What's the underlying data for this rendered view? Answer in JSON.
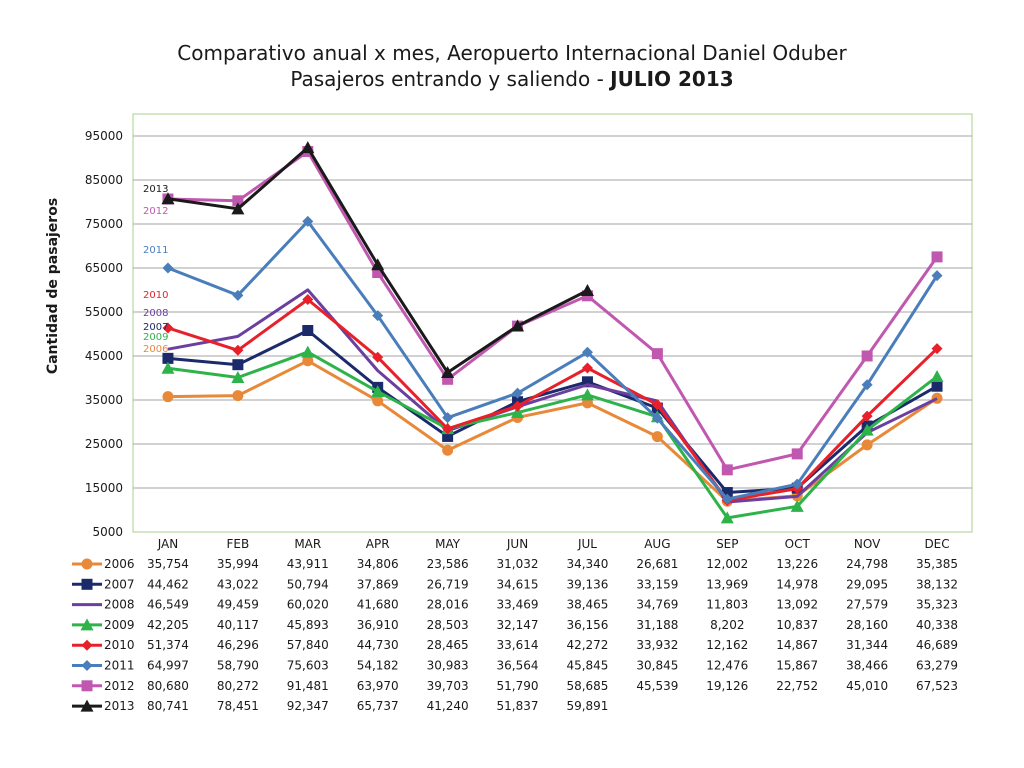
{
  "chart_data": {
    "type": "line",
    "title": "Comparativo anual x mes, Aeropuerto Internacional Daniel Oduber",
    "subtitle_prefix": "Pasajeros entrando y saliendo - ",
    "subtitle_bold": "JULIO 2013",
    "ylabel": "Cantidad de pasajeros",
    "xlabel": "",
    "categories": [
      "JAN",
      "FEB",
      "MAR",
      "APR",
      "MAY",
      "JUN",
      "JUL",
      "AUG",
      "SEP",
      "OCT",
      "NOV",
      "DEC"
    ],
    "ylim": [
      5000,
      100000
    ],
    "yticks": [
      5000,
      15000,
      25000,
      35000,
      45000,
      55000,
      65000,
      75000,
      85000,
      95000
    ],
    "ytick_labels": [
      "5000",
      "15000",
      "25000",
      "35000",
      "45000",
      "55000",
      "65000",
      "75000",
      "85000",
      "95000"
    ],
    "grid": true,
    "legend": "table-bottom",
    "series": [
      {
        "name": "2006",
        "color": "#E8893A",
        "marker": "circle",
        "values": [
          35754,
          35994,
          43911,
          34806,
          23586,
          31032,
          34340,
          26681,
          12002,
          13226,
          24798,
          35385
        ],
        "labels": [
          "35,754",
          "35,994",
          "43,911",
          "34,806",
          "23,586",
          "31,032",
          "34,340",
          "26,681",
          "12,002",
          "13,226",
          "24,798",
          "35,385"
        ]
      },
      {
        "name": "2007",
        "color": "#1B2A6B",
        "marker": "square",
        "values": [
          44462,
          43022,
          50794,
          37869,
          26719,
          34615,
          39136,
          33159,
          13969,
          14978,
          29095,
          38132
        ],
        "labels": [
          "44,462",
          "43,022",
          "50,794",
          "37,869",
          "26,719",
          "34,615",
          "39,136",
          "33,159",
          "13,969",
          "14,978",
          "29,095",
          "38,132"
        ]
      },
      {
        "name": "2008",
        "color": "#6B3FA0",
        "marker": "none",
        "values": [
          46549,
          49459,
          60020,
          41680,
          28016,
          33469,
          38465,
          34769,
          11803,
          13092,
          27579,
          35323
        ],
        "labels": [
          "46,549",
          "49,459",
          "60,020",
          "41,680",
          "28,016",
          "33,469",
          "38,465",
          "34,769",
          "11,803",
          "13,092",
          "27,579",
          "35,323"
        ]
      },
      {
        "name": "2009",
        "color": "#2DB34A",
        "marker": "triangle",
        "values": [
          42205,
          40117,
          45893,
          36910,
          28503,
          32147,
          36156,
          31188,
          8202,
          10837,
          28160,
          40338
        ],
        "labels": [
          "42,205",
          "40,117",
          "45,893",
          "36,910",
          "28,503",
          "32,147",
          "36,156",
          "31,188",
          "8,202",
          "10,837",
          "28,160",
          "40,338"
        ]
      },
      {
        "name": "2010",
        "color": "#E8202A",
        "marker": "diamond",
        "values": [
          51374,
          46296,
          57840,
          44730,
          28465,
          33614,
          42272,
          33932,
          12162,
          14867,
          31344,
          46689
        ],
        "labels": [
          "51,374",
          "46,296",
          "57,840",
          "44,730",
          "28,465",
          "33,614",
          "42,272",
          "33,932",
          "12,162",
          "14,867",
          "31,344",
          "46,689"
        ]
      },
      {
        "name": "2011",
        "color": "#4A7EBB",
        "marker": "diamond",
        "values": [
          64997,
          58790,
          75603,
          54182,
          30983,
          36564,
          45845,
          30845,
          12476,
          15867,
          38466,
          63279
        ],
        "labels": [
          "64,997",
          "58,790",
          "75,603",
          "54,182",
          "30,983",
          "36,564",
          "45,845",
          "30,845",
          "12,476",
          "15,867",
          "38,466",
          "63,279"
        ]
      },
      {
        "name": "2012",
        "color": "#C058B0",
        "marker": "square",
        "values": [
          80680,
          80272,
          91481,
          63970,
          39703,
          51790,
          58685,
          45539,
          19126,
          22752,
          45010,
          67523
        ],
        "labels": [
          "80,680",
          "80,272",
          "91,481",
          "63,970",
          "39,703",
          "51,790",
          "58,685",
          "45,539",
          "19,126",
          "22,752",
          "45,010",
          "67,523"
        ]
      },
      {
        "name": "2013",
        "color": "#1A1A1A",
        "marker": "triangle",
        "values": [
          80741,
          78451,
          92347,
          65737,
          41240,
          51837,
          59891,
          null,
          null,
          null,
          null,
          null
        ],
        "labels": [
          "80,741",
          "78,451",
          "92,347",
          "65,737",
          "41,240",
          "51,837",
          "59,891",
          "",
          "",
          "",
          "",
          ""
        ]
      }
    ],
    "inline_labels": [
      {
        "series": 7,
        "text": "2013"
      },
      {
        "series": 6,
        "text": "2012"
      },
      {
        "series": 5,
        "text": "2011"
      },
      {
        "series": 4,
        "text": "2010"
      },
      {
        "series": 2,
        "text": "2008"
      },
      {
        "series": 1,
        "text": "2007"
      },
      {
        "series": 3,
        "text": "2009"
      },
      {
        "series": 0,
        "text": "2006"
      }
    ]
  }
}
